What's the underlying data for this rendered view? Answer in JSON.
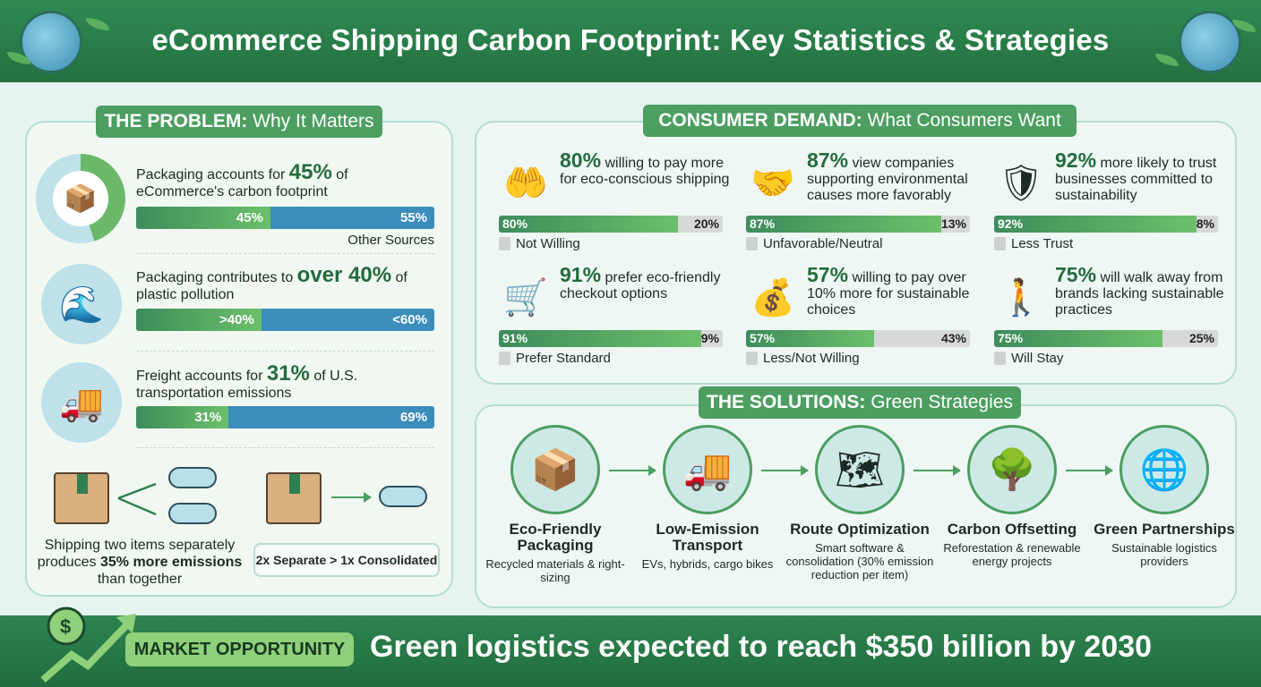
{
  "title": "eCommerce Shipping Carbon Footprint: Key Statistics & Strategies",
  "colors": {
    "header": "#2f8a52",
    "accent_green": "#4c9e61",
    "bar_blue": "#3b8dbc",
    "bar_gray": "#d7d9d8",
    "footer": "#226d3d",
    "market_pill": "#8fd07a"
  },
  "problem": {
    "heading_bold": "THE PROBLEM:",
    "heading_rest": " Why It Matters",
    "items": [
      {
        "icon": "package-icon",
        "pre": "Packaging accounts for ",
        "stat": "45%",
        "post": " of eCommerce's carbon footprint",
        "left_label": "45%",
        "right_label": "55%",
        "left_value": 45,
        "right_caption": "Other Sources"
      },
      {
        "icon": "plastic-bottle-wave-icon",
        "pre": "Packaging contributes to ",
        "stat": "over 40%",
        "post": " of plastic pollution",
        "left_label": ">40%",
        "right_label": "<60%",
        "left_value": 42
      },
      {
        "icon": "freight-truck-icon",
        "pre": "Freight accounts for ",
        "stat": "31%",
        "post": " of U.S. transportation emissions",
        "left_label": "31%",
        "right_label": "69%",
        "left_value": 31
      }
    ],
    "shipping": {
      "pre": "Shipping two items separately produces ",
      "stat": "35% more emissions",
      "post": " than together",
      "compare": "2x Separate > 1x Consolidated"
    }
  },
  "demand": {
    "heading_bold": "CONSUMER DEMAND:",
    "heading_rest": " What Consumers Want",
    "items": [
      {
        "icon": "hand-heart-coin-icon",
        "stat": "80%",
        "text": " willing to pay more for eco-conscious shipping",
        "value": 80,
        "left": "80%",
        "right": "20%",
        "legend": "Not Willing"
      },
      {
        "icon": "handshake-globe-icon",
        "stat": "87%",
        "text": " view companies supporting environmental causes more favorably",
        "value": 87,
        "left": "87%",
        "right": "13%",
        "legend": "Unfavorable/Neutral"
      },
      {
        "icon": "shield-leaf-icon",
        "stat": "92%",
        "text": " more likely to trust businesses committed to sustainability",
        "value": 92,
        "left": "92%",
        "right": "8%",
        "legend": "Less Trust"
      },
      {
        "icon": "cart-leaf-icon",
        "stat": "91%",
        "text": " prefer eco-friendly checkout options",
        "value": 91,
        "left": "91%",
        "right": "9%",
        "legend": "Prefer Standard"
      },
      {
        "icon": "money-bag-icon",
        "stat": "57%",
        "text": " willing to pay over 10% more for sustainable choices",
        "value": 57,
        "left": "57%",
        "right": "43%",
        "legend": "Less/Not Willing"
      },
      {
        "icon": "person-walking-away-icon",
        "stat": "75%",
        "text": " will walk away from brands lacking sustainable practices",
        "value": 75,
        "left": "75%",
        "right": "25%",
        "legend": "Will Stay"
      }
    ]
  },
  "solutions": {
    "heading_bold": "THE SOLUTIONS:",
    "heading_rest": " Green Strategies",
    "items": [
      {
        "icon": "eco-box-recycle-icon",
        "glyph": "📦",
        "title": "Eco-Friendly Packaging",
        "desc": "Recycled materials & right-sizing"
      },
      {
        "icon": "electric-truck-bike-icon",
        "glyph": "🚚",
        "title": "Low-Emission Transport",
        "desc": "EVs, hybrids, cargo bikes"
      },
      {
        "icon": "map-route-gear-icon",
        "glyph": "🗺",
        "title": "Route Optimization",
        "desc": "Smart software & consolidation (30% emission reduction per item)"
      },
      {
        "icon": "tree-solar-icon",
        "glyph": "🌳",
        "title": "Carbon Offsetting",
        "desc": "Reforestation & renewable energy projects"
      },
      {
        "icon": "hands-globe-icon",
        "glyph": "🌐",
        "title": "Green Partnerships",
        "desc": "Sustainable logistics providers"
      }
    ]
  },
  "market": {
    "label": "MARKET OPPORTUNITY",
    "text": "Green logistics expected to reach $350 billion by 2030",
    "icon": "dollar-growth-arrow-icon"
  }
}
